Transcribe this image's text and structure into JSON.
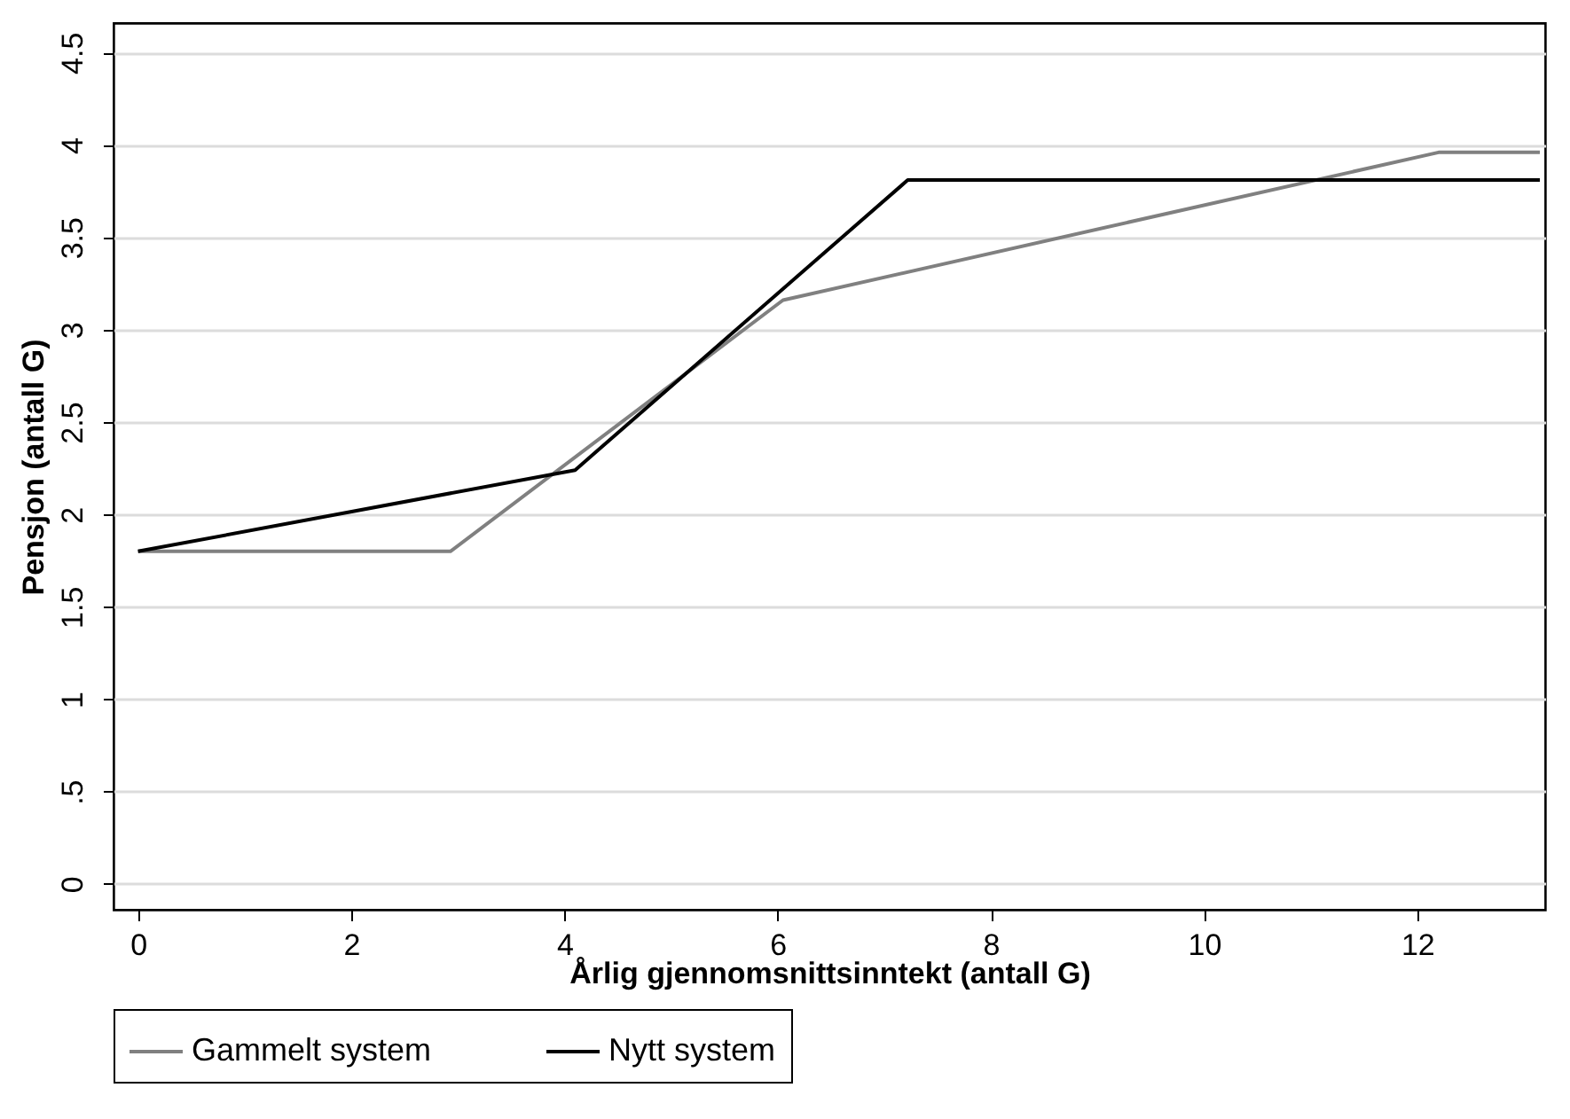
{
  "chart_data": {
    "type": "line",
    "xlabel": "Årlig gjennomsnittsinntekt (antall G)",
    "ylabel": "Pensjon (antall G)",
    "xlim": [
      -0.23,
      13.2
    ],
    "xticks": [
      0,
      2,
      4,
      6,
      8,
      10,
      12
    ],
    "ylim": [
      -0.14,
      4.66
    ],
    "yticks": [
      0,
      {
        "value": 0.5,
        "label": ".5"
      },
      1,
      1.5,
      2,
      2.5,
      3,
      3.5,
      4,
      4.5
    ],
    "grid": "y",
    "legend": "bottom",
    "marker": "none",
    "line_style": "solid",
    "series": [
      {
        "name": "Gammelt system",
        "color": "#808080",
        "x": [
          0,
          2.93,
          6.05,
          12.2,
          13.15
        ],
        "values": [
          1.8,
          1.8,
          3.16,
          3.96,
          3.96
        ]
      },
      {
        "name": "Nytt system",
        "color": "#000000",
        "x": [
          0,
          4.1,
          7.22,
          13.15
        ],
        "values": [
          1.8,
          2.24,
          3.81,
          3.81
        ]
      }
    ]
  }
}
